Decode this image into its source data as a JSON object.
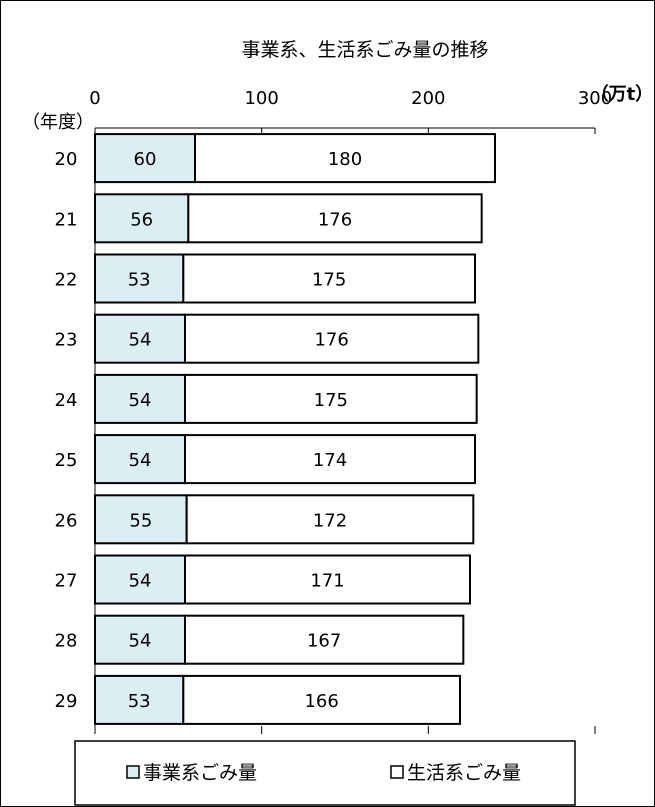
{
  "chart_data": {
    "type": "bar",
    "orientation": "horizontal",
    "stacked": true,
    "title": "事業系、生活系ごみ量の推移",
    "unit_label": "（万t）",
    "category_label": "（年度）",
    "categories": [
      "20",
      "21",
      "22",
      "23",
      "24",
      "25",
      "26",
      "27",
      "28",
      "29"
    ],
    "series": [
      {
        "name": "事業系ごみ量",
        "values": [
          60,
          56,
          53,
          54,
          54,
          54,
          55,
          54,
          54,
          53
        ],
        "color": "#dbeef4"
      },
      {
        "name": "生活系ごみ量",
        "values": [
          180,
          176,
          175,
          176,
          175,
          174,
          172,
          171,
          167,
          166
        ],
        "color": "#ffffff"
      }
    ],
    "xlim": [
      0,
      300
    ],
    "xticks": [
      "0",
      "100",
      "200",
      "300"
    ],
    "axis_position": "top",
    "grid": false,
    "legend_position": "bottom"
  }
}
